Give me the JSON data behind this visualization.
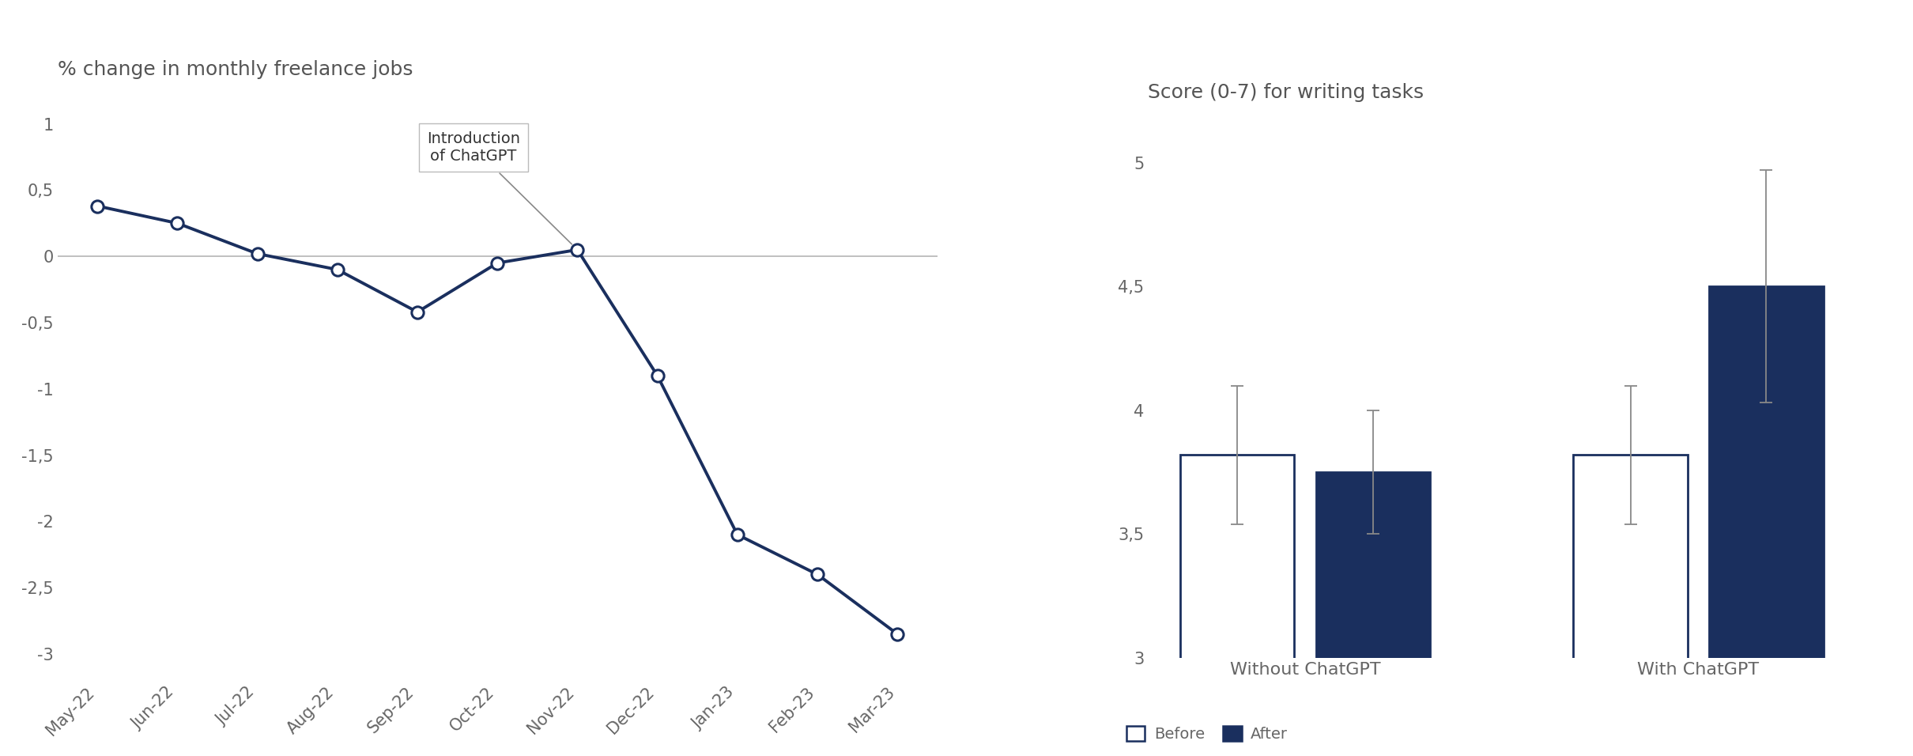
{
  "line_title": "% change in monthly freelance jobs",
  "bar_title": "Score (0-7) for writing tasks",
  "line_x_labels": [
    "May-22",
    "Jun-22",
    "Jul-22",
    "Aug-22",
    "Sep-22",
    "Oct-22",
    "Nov-22",
    "Dec-22",
    "Jan-23",
    "Feb-23",
    "Mar-23"
  ],
  "line_y_values": [
    0.38,
    0.25,
    0.02,
    -0.1,
    -0.42,
    -0.05,
    0.05,
    -0.9,
    -2.1,
    -2.4,
    -2.85
  ],
  "line_color": "#1a2f5e",
  "line_annotation_text": "Introduction\nof ChatGPT",
  "annotation_point_index": 6,
  "line_ylim": [
    -3.2,
    1.25
  ],
  "line_yticks": [
    1,
    0.5,
    0,
    -0.5,
    -1,
    -1.5,
    -2,
    -2.5,
    -3
  ],
  "line_ytick_labels": [
    "1",
    "0,5",
    "0",
    "-0,5",
    "-1",
    "-1,5",
    "-2",
    "-2,5",
    "-3"
  ],
  "bar_groups": [
    "Without ChatGPT",
    "With ChatGPT"
  ],
  "bar_before_values": [
    3.82,
    3.82
  ],
  "bar_after_values": [
    3.75,
    4.5
  ],
  "bar_before_errors": [
    0.28,
    0.28
  ],
  "bar_after_errors": [
    0.25,
    0.47
  ],
  "bar_ylim": [
    3.0,
    5.2
  ],
  "bar_yticks": [
    3,
    3.5,
    4,
    4.5,
    5
  ],
  "bar_ytick_labels": [
    "3",
    "3,5",
    "4",
    "4,5",
    "5"
  ],
  "before_color": "#ffffff",
  "after_color": "#1a2f5e",
  "border_color": "#1a2f5e",
  "legend_before": "Before",
  "legend_after": "After",
  "bg_color": "#ffffff",
  "text_color": "#666666",
  "title_color": "#555555",
  "zero_line_color": "#bbbbbb",
  "font_family": "DejaVu Sans"
}
